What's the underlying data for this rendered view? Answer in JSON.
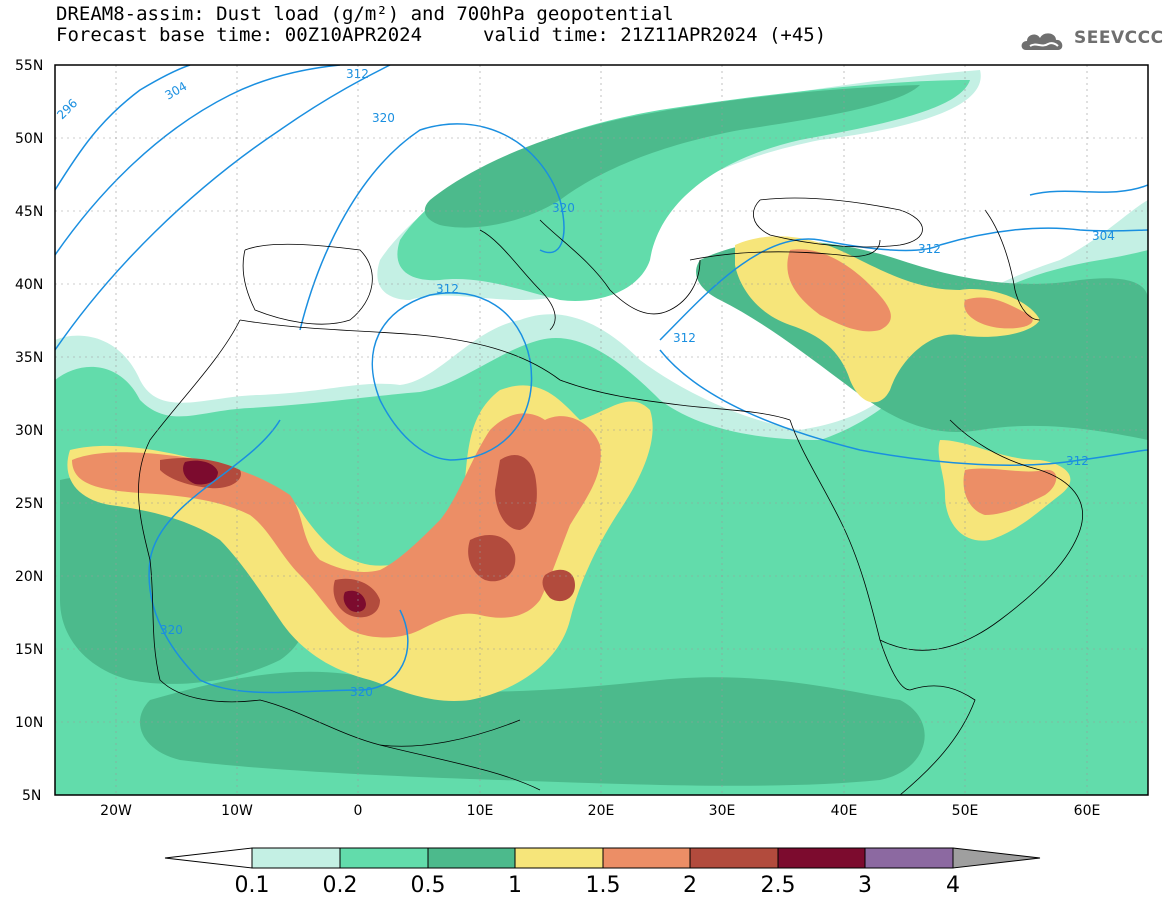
{
  "header": {
    "title_line1": "DREAM8-assim: Dust load (g/m²) and 700hPa geopotential",
    "title_line2": "Forecast base time: 00Z10APR2024",
    "title_line3": "valid time: 21Z11APR2024 (+45)",
    "logo_text": "SEEVCCC"
  },
  "axes": {
    "lat_labels": [
      "55N",
      "50N",
      "45N",
      "40N",
      "35N",
      "30N",
      "25N",
      "20N",
      "15N",
      "10N",
      "5N"
    ],
    "lon_labels": [
      "20W",
      "10W",
      "0",
      "10E",
      "20E",
      "30E",
      "40E",
      "50E",
      "60E"
    ]
  },
  "contour_labels": [
    "296",
    "304",
    "312",
    "320",
    "320",
    "312",
    "320",
    "312",
    "304",
    "312",
    "312",
    "320",
    "320",
    "312"
  ],
  "colorbar": {
    "ticks": [
      "0.1",
      "0.2",
      "0.5",
      "1",
      "1.5",
      "2",
      "2.5",
      "3",
      "4"
    ],
    "colors": [
      "#ffffff",
      "#c4f0e4",
      "#62dcab",
      "#4cba8c",
      "#f6e57a",
      "#ec8e66",
      "#b24b3d",
      "#7c0b2e",
      "#8c69a1",
      "#9f9f9f"
    ]
  },
  "map_colors": {
    "dust_0_1": "#c4f0e4",
    "dust_0_2": "#62dcab",
    "dust_0_5": "#4cba8c",
    "dust_1": "#f6e57a",
    "dust_1_5": "#ec8e66",
    "dust_2": "#b24b3d",
    "dust_2_5": "#7c0b2e",
    "geopotential_line": "#1a8fe0"
  }
}
